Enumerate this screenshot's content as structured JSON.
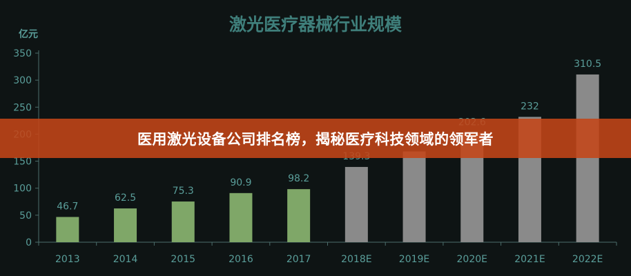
{
  "overlay": {
    "headline": "医用激光设备公司排名榜，揭秘医疗科技领域的领军者"
  },
  "colors": {
    "background": "#0e1414",
    "actual": "#7fa768",
    "estimate": "#8a8a8a",
    "text": "#5a9e9a",
    "axis": "#4c6e6c",
    "banner": "#c44618"
  },
  "chart_data": {
    "type": "bar",
    "title": "激光医疗器械行业规模",
    "ylabel": "亿元",
    "xlabel": "",
    "ylim": [
      0,
      350
    ],
    "yticks": [
      0,
      50,
      100,
      150,
      200,
      250,
      300,
      350
    ],
    "grid": false,
    "categories": [
      "2013",
      "2014",
      "2015",
      "2016",
      "2017",
      "2018E",
      "2019E",
      "2020E",
      "2021E",
      "2022E"
    ],
    "values": [
      46.7,
      62.5,
      75.3,
      90.9,
      98.2,
      139.3,
      168,
      202.6,
      232,
      310.5
    ],
    "data_labels": [
      "46.7",
      "62.5",
      "75.3",
      "90.9",
      "98.2",
      "139.3",
      "",
      "202.6",
      "232",
      "310.5"
    ],
    "kind": [
      "actual",
      "actual",
      "actual",
      "actual",
      "actual",
      "estimate",
      "estimate",
      "estimate",
      "estimate",
      "estimate"
    ]
  }
}
